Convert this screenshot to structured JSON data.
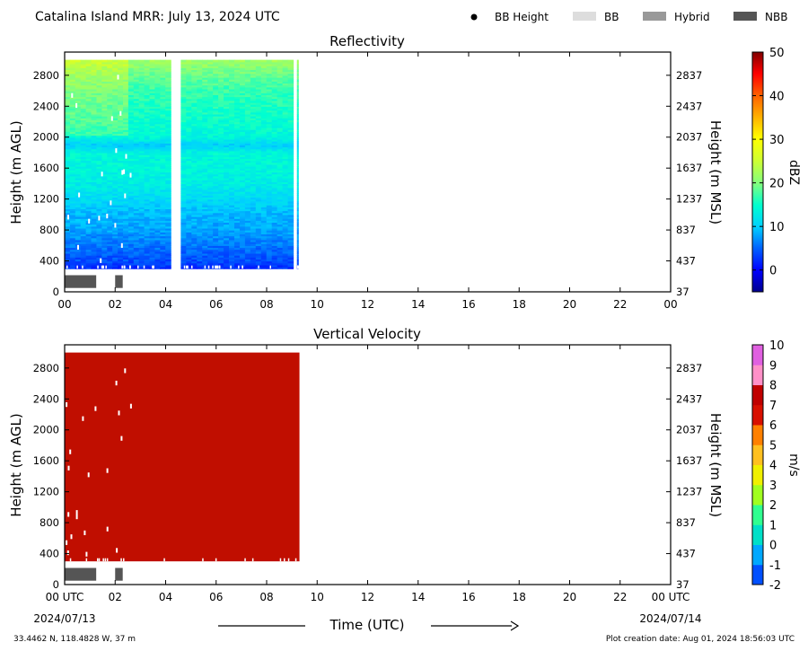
{
  "header": {
    "title": "Catalina Island MRR:  July 13, 2024 UTC",
    "legend": [
      {
        "label": "BB Height",
        "symbol": "dot",
        "color": "#000000"
      },
      {
        "label": "BB",
        "symbol": "rect",
        "color": "#dddddd"
      },
      {
        "label": "Hybrid",
        "symbol": "rect",
        "color": "#999999"
      },
      {
        "label": "NBB",
        "symbol": "rect",
        "color": "#555555"
      }
    ]
  },
  "footer": {
    "location": "33.4462 N, 118.4828 W, 37 m",
    "creation": "Plot creation date: Aug 01, 2024 18:56:03 UTC",
    "xlabel": "Time (UTC)",
    "start_date": "2024/07/13",
    "end_date": "2024/07/14"
  },
  "chart_data": [
    {
      "type": "heatmap",
      "title": "Reflectivity",
      "ylabel": "Height (m AGL)",
      "y2label": "Height (m MSL)",
      "x_ticks": [
        "00",
        "02",
        "04",
        "06",
        "08",
        "10",
        "12",
        "14",
        "16",
        "18",
        "20",
        "22",
        "00"
      ],
      "xlim": [
        0,
        24
      ],
      "ylim": [
        0,
        3100
      ],
      "y_ticks": [
        0,
        400,
        800,
        1200,
        1600,
        2000,
        2400,
        2800
      ],
      "y2_ticks": [
        37,
        437,
        837,
        1237,
        1637,
        2037,
        2437,
        2837
      ],
      "colorbar": {
        "label": "dBZ",
        "range": [
          -5,
          50
        ],
        "ticks": [
          0,
          10,
          20,
          30,
          40,
          50
        ],
        "colors": [
          "#00008f",
          "#0000ff",
          "#0080ff",
          "#00ffff",
          "#80ff80",
          "#ffff00",
          "#ff8000",
          "#ff0000",
          "#800000"
        ]
      },
      "data_segments": [
        {
          "start": 0.0,
          "end": 4.2,
          "top": 3000,
          "bottom": 300
        },
        {
          "start": 4.6,
          "end": 9.05,
          "top": 3000,
          "bottom": 300
        },
        {
          "start": 9.2,
          "end": 9.25,
          "top": 3000,
          "bottom": 300
        }
      ],
      "profile_dbz": [
        {
          "h": 300,
          "dbz": 2
        },
        {
          "h": 400,
          "dbz": 4
        },
        {
          "h": 600,
          "dbz": 6
        },
        {
          "h": 800,
          "dbz": 8
        },
        {
          "h": 1000,
          "dbz": 9
        },
        {
          "h": 1200,
          "dbz": 11
        },
        {
          "h": 1400,
          "dbz": 13
        },
        {
          "h": 1600,
          "dbz": 14
        },
        {
          "h": 1800,
          "dbz": 14
        },
        {
          "h": 1900,
          "dbz": 10
        },
        {
          "h": 2000,
          "dbz": 14
        },
        {
          "h": 2200,
          "dbz": 15
        },
        {
          "h": 2400,
          "dbz": 16
        },
        {
          "h": 2600,
          "dbz": 17
        },
        {
          "h": 2800,
          "dbz": 19
        },
        {
          "h": 3000,
          "dbz": 22
        }
      ],
      "bb_type": [
        {
          "start": 0.0,
          "end": 1.25,
          "type": "NBB"
        },
        {
          "start": 2.0,
          "end": 2.3,
          "type": "NBB"
        }
      ]
    },
    {
      "type": "heatmap",
      "title": "Vertical Velocity",
      "ylabel": "Height (m AGL)",
      "y2label": "Height (m MSL)",
      "x_ticks": [
        "00 UTC",
        "02",
        "04",
        "06",
        "08",
        "10",
        "12",
        "14",
        "16",
        "18",
        "20",
        "22",
        "00 UTC"
      ],
      "xlim": [
        0,
        24
      ],
      "ylim": [
        0,
        3100
      ],
      "y_ticks": [
        0,
        400,
        800,
        1200,
        1600,
        2000,
        2400,
        2800
      ],
      "y2_ticks": [
        37,
        437,
        837,
        1237,
        1637,
        2037,
        2437,
        2837
      ],
      "colorbar": {
        "label": "m/s",
        "range": [
          -2,
          10
        ],
        "ticks": [
          -2,
          -1,
          0,
          1,
          2,
          3,
          4,
          5,
          6,
          7,
          8,
          9,
          10
        ],
        "colors": [
          "#0040ff",
          "#00a0ff",
          "#00e0c0",
          "#40ff80",
          "#c0ff00",
          "#ffff00",
          "#ffc000",
          "#ff8000",
          "#e00000",
          "#c00000",
          "#ff80c0",
          "#e060e0",
          "#a000a0"
        ]
      },
      "data_segments": [
        {
          "start": 0.0,
          "end": 9.3,
          "top": 3000,
          "bottom": 300
        }
      ],
      "fill_color": "#c00e00",
      "bb_type": [
        {
          "start": 0.0,
          "end": 1.25,
          "type": "NBB"
        },
        {
          "start": 2.0,
          "end": 2.3,
          "type": "NBB"
        }
      ]
    }
  ]
}
